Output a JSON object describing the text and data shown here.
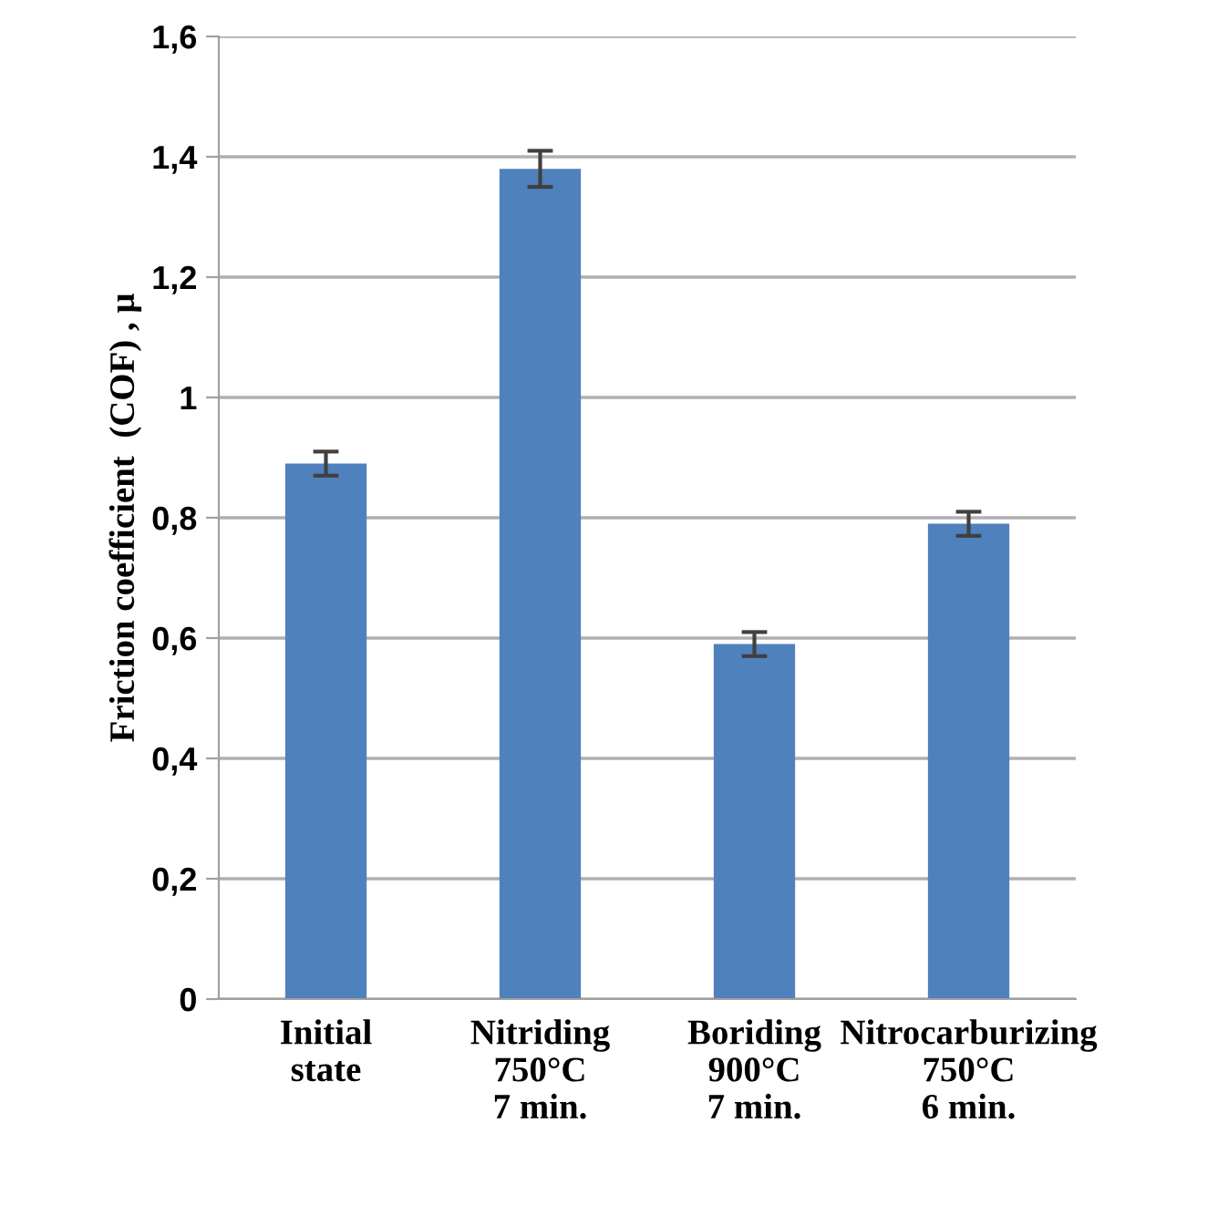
{
  "chart_data": {
    "type": "bar",
    "ylabel": "Friction coefficient  (COF) , μ",
    "categories": [
      "Initial\nstate",
      "Nitriding\n750°C\n7 min.",
      "Boriding\n900°C\n7 min.",
      "Nitrocarburizing\n750°C\n6 min."
    ],
    "values": [
      0.89,
      1.38,
      0.59,
      0.79
    ],
    "errors": [
      0.02,
      0.03,
      0.02,
      0.02
    ],
    "color": "#4f81bd",
    "ylim": [
      0,
      1.6
    ],
    "yticks": [
      {
        "value": 0,
        "label": "0"
      },
      {
        "value": 0.2,
        "label": "0,2"
      },
      {
        "value": 0.4,
        "label": "0,4"
      },
      {
        "value": 0.6,
        "label": "0,6"
      },
      {
        "value": 0.8,
        "label": "0,8"
      },
      {
        "value": 1,
        "label": "1"
      },
      {
        "value": 1.2,
        "label": "1,2"
      },
      {
        "value": 1.4,
        "label": "1,4"
      },
      {
        "value": 1.6,
        "label": "1,6"
      }
    ],
    "grid": "y"
  }
}
